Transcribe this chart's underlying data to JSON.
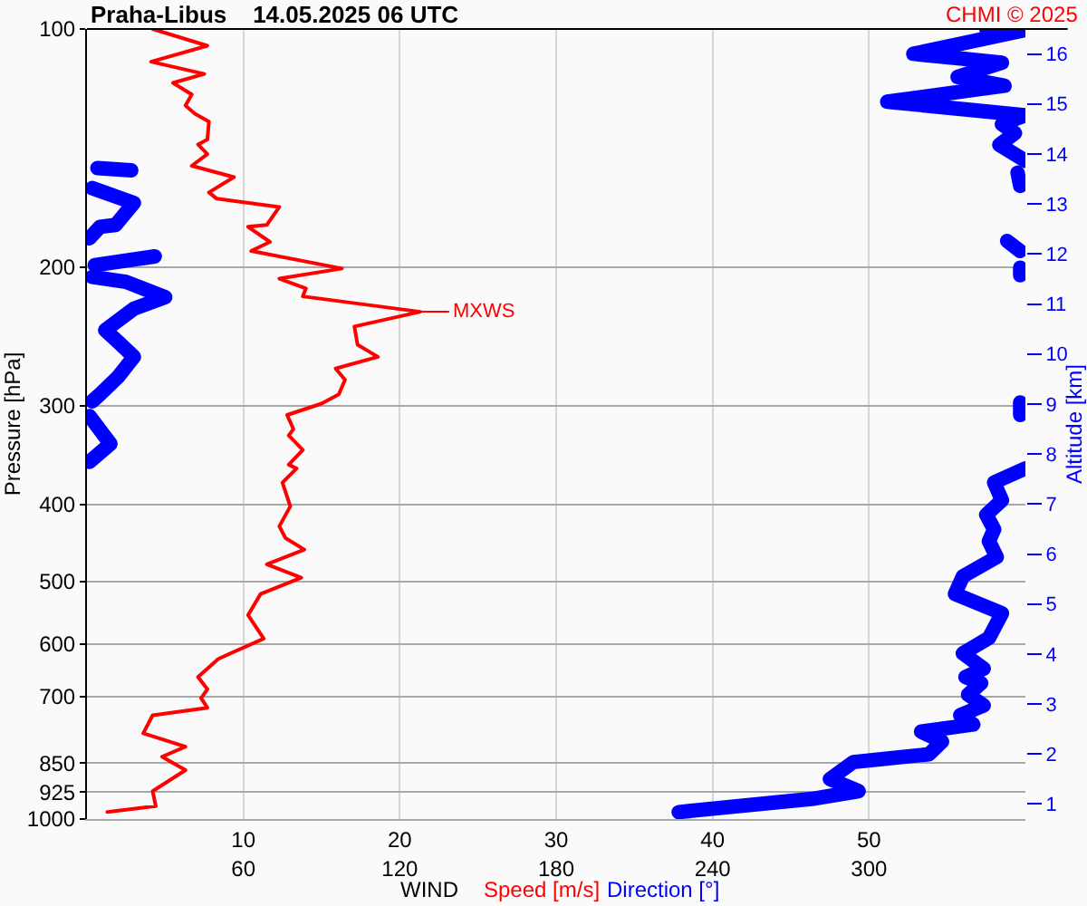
{
  "chart_data": {
    "type": "line",
    "orientation": "horizontal",
    "title": "Praha-Libus    14.05.2025 06 UTC",
    "xlabel": "WIND",
    "ylabel": "Pressure [hPa]",
    "y2label": "Altitude [km]",
    "annotations": [
      {
        "text": "MXWS",
        "x": 21.3,
        "y": 228
      },
      "CHMI © 2025"
    ],
    "xlim": [
      0,
      60
    ],
    "xticks": [
      10,
      20,
      30,
      40,
      50
    ],
    "x2lim": [
      0,
      360
    ],
    "x2ticks": [
      60,
      120,
      180,
      240,
      300
    ],
    "ylim": [
      1000,
      100
    ],
    "yticks": [
      100,
      200,
      300,
      400,
      500,
      600,
      700,
      850,
      925,
      1000
    ],
    "log": "y",
    "y2lim": [
      0.7,
      16.5
    ],
    "y2ticks": [
      1,
      2,
      3,
      4,
      5,
      6,
      7,
      8,
      9,
      10,
      11,
      12,
      13,
      14,
      15,
      16
    ],
    "grid": true,
    "marker": "none",
    "line_style": "solid",
    "series": [
      {
        "name": "Speed [m/s]",
        "color": "#ff0000",
        "x": [
          100,
          105,
          110,
          114,
          117,
          121,
          125,
          128,
          131,
          138,
          140,
          144,
          149,
          154,
          161,
          164,
          168,
          177,
          178,
          186,
          191,
          201,
          207,
          213,
          218,
          228,
          238,
          251,
          260,
          269,
          278,
          290,
          298,
          308,
          321,
          327,
          341,
          356,
          360,
          375,
          402,
          426,
          441,
          456,
          476,
          495,
          519,
          552,
          591,
          627,
          661,
          685,
          703,
          723,
          739,
          779,
          810,
          834,
          867,
          922,
          963,
          980
        ],
        "values": [
          4.2,
          7.7,
          4.1,
          7.5,
          5.5,
          6.7,
          6.3,
          6.9,
          7.8,
          7.7,
          7.1,
          7.7,
          6.7,
          9.4,
          7.8,
          8.3,
          12.3,
          11.5,
          10.3,
          11.7,
          10.5,
          16.3,
          12.3,
          14.0,
          13.8,
          21.3,
          17.1,
          17.3,
          18.6,
          15.9,
          16.5,
          16.1,
          15.0,
          12.8,
          13.2,
          12.9,
          13.8,
          12.9,
          13.4,
          12.5,
          13.0,
          12.3,
          12.7,
          13.9,
          11.5,
          13.7,
          11.1,
          10.3,
          11.3,
          8.4,
          7.1,
          7.7,
          7.3,
          7.7,
          4.2,
          3.6,
          6.3,
          4.8,
          6.3,
          4.2,
          4.4,
          1.3
        ]
      },
      {
        "name": "Direction [°]",
        "color": "#0000ff",
        "axis": "x2",
        "x": [
          100,
          100.3,
          107.5,
          110.3,
          115,
          118,
          123.6,
          128.6,
          132,
          135.4,
          140.2,
          146.8,
          148,
          150,
          151,
          151.5,
          152,
          158,
          158.5,
          159,
          166,
          177,
          178,
          184,
          185,
          185.5,
          191,
          192,
          194,
          199,
          199.5,
          200.5,
          205,
          205.5,
          206,
          209,
          218.5,
          226,
          240.5,
          249,
          260,
          275.5,
          290,
          296,
          296.5,
          297,
          308,
          308.5,
          309,
          335,
          353,
          356,
          360,
          375,
          395,
          412,
          430,
          445,
          466,
          493,
          519,
          549,
          590,
          617,
          645,
          661,
          673,
          696,
          718,
          739,
          759,
          775,
          798,
          828,
          847,
          890,
          922,
          943,
          980
        ],
        "values": [
          345,
          360,
          317,
          351,
          334,
          352,
          307,
          360,
          351,
          356,
          350,
          360,
          null,
          4,
          17,
          null,
          357,
          358,
          null,
          2,
          18,
          11,
          5,
          1,
          null,
          353,
          358,
          null,
          26,
          3,
          null,
          358,
          358,
          null,
          2,
          15,
          30,
          18,
          7,
          12,
          18,
          12,
          5,
          2,
          null,
          358,
          358,
          null,
          1,
          9,
          1,
          null,
          360,
          348,
          351,
          345,
          348,
          346,
          349,
          336,
          333,
          351,
          346,
          336,
          344,
          337,
          343,
          338,
          344,
          335,
          340,
          320,
          328,
          323,
          294,
          285,
          296,
          278,
          227
        ]
      }
    ]
  }
}
